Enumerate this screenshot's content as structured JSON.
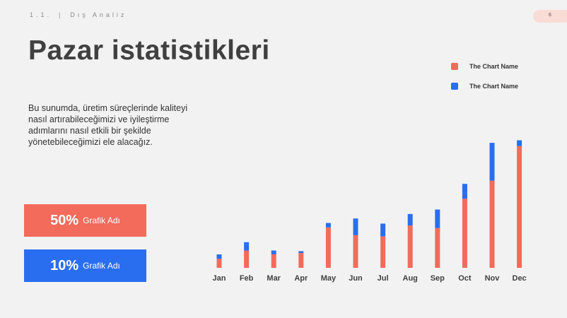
{
  "header": {
    "section": "1.1.",
    "separator": "|",
    "section_title": "Dış Analiz",
    "page_number": "6"
  },
  "title": "Pazar istatistikleri",
  "description": "Bu sunumda, üretim süreçlerinde kaliteyi nasıl artırabileceğimizi ve iyileştirme adımlarını nasıl etkili bir şekilde yönetebileceğimizi ele alacağız.",
  "stats": [
    {
      "value": "50%",
      "label": "Grafik Adı",
      "color": "#f26b5b"
    },
    {
      "value": "10%",
      "label": "Grafik Adı",
      "color": "#2a6ef0"
    }
  ],
  "colors": {
    "series1": "#f26b5b",
    "series2": "#2a6ef0",
    "background": "#f2f2f2"
  },
  "chart_data": {
    "type": "bar",
    "stacked": true,
    "categories": [
      "Jan",
      "Feb",
      "Mar",
      "Apr",
      "May",
      "Jun",
      "Jul",
      "Aug",
      "Sep",
      "Oct",
      "Nov",
      "Dec"
    ],
    "series": [
      {
        "name": "The Chart Name",
        "color": "#f26b5b",
        "values": [
          14,
          27,
          21,
          23,
          63,
          51,
          49,
          66,
          62,
          108,
          136,
          190
        ]
      },
      {
        "name": "The Chart Name",
        "color": "#2a6ef0",
        "values": [
          7,
          13,
          6,
          3,
          7,
          26,
          20,
          18,
          29,
          23,
          59,
          9
        ]
      }
    ],
    "ylim": [
      0,
      200
    ],
    "grid": false,
    "legend": "top-right"
  }
}
